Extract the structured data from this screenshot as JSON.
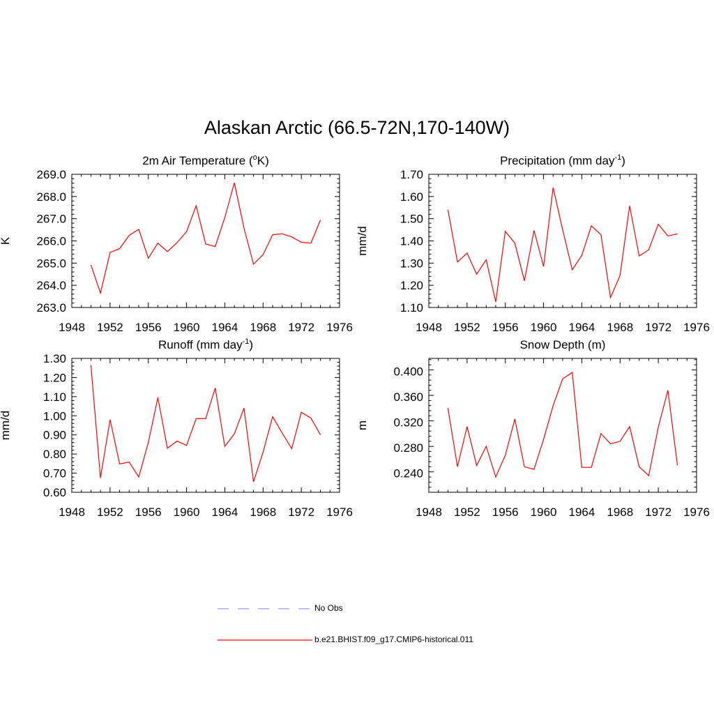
{
  "title": "Alaskan Arctic (66.5-72N,170-140W)",
  "x_ticks": [
    "1948",
    "1952",
    "1956",
    "1960",
    "1964",
    "1968",
    "1972",
    "1976"
  ],
  "colors": {
    "model": "#ff0000",
    "obs": "#9999ff",
    "axis": "#000000"
  },
  "chart_data": [
    {
      "type": "line",
      "title_main": "2m Air Temperature (",
      "title_sup": "o",
      "title_tail": "K)",
      "ylabel": "K",
      "xlim": [
        1948,
        1976
      ],
      "ylim": [
        263.0,
        269.0
      ],
      "yticks": [
        "263.0",
        "264.0",
        "265.0",
        "266.0",
        "267.0",
        "268.0",
        "269.0"
      ],
      "x": [
        1950,
        1951,
        1952,
        1953,
        1954,
        1955,
        1956,
        1957,
        1958,
        1959,
        1960,
        1961,
        1962,
        1963,
        1964,
        1965,
        1966,
        1967,
        1968,
        1969,
        1970,
        1971,
        1972,
        1973,
        1974
      ],
      "series": [
        {
          "name": "b.e21.BHIST.f09_g17.CMIP6-historical.011",
          "values": [
            264.92,
            263.65,
            265.48,
            265.65,
            266.25,
            266.52,
            265.22,
            265.9,
            265.52,
            265.92,
            266.42,
            267.58,
            265.86,
            265.75,
            267.05,
            268.62,
            266.58,
            264.95,
            265.38,
            266.28,
            266.32,
            266.18,
            265.94,
            265.9,
            266.94
          ]
        }
      ]
    },
    {
      "type": "line",
      "title_main": "Precipitation (mm day",
      "title_sup": "-1",
      "title_tail": ")",
      "ylabel": "mm/d",
      "xlim": [
        1948,
        1976
      ],
      "ylim": [
        1.1,
        1.7
      ],
      "yticks": [
        "1.10",
        "1.20",
        "1.30",
        "1.40",
        "1.50",
        "1.60",
        "1.70"
      ],
      "x": [
        1950,
        1951,
        1952,
        1953,
        1954,
        1955,
        1956,
        1957,
        1958,
        1959,
        1960,
        1961,
        1962,
        1963,
        1964,
        1965,
        1966,
        1967,
        1968,
        1969,
        1970,
        1971,
        1972,
        1973,
        1974
      ],
      "series": [
        {
          "name": "b.e21.BHIST.f09_g17.CMIP6-historical.011",
          "values": [
            1.54,
            1.305,
            1.345,
            1.25,
            1.315,
            1.125,
            1.443,
            1.39,
            1.22,
            1.447,
            1.285,
            1.64,
            1.45,
            1.27,
            1.335,
            1.468,
            1.428,
            1.145,
            1.245,
            1.558,
            1.332,
            1.36,
            1.475,
            1.422,
            1.432
          ]
        }
      ]
    },
    {
      "type": "line",
      "title_main": "Runoff (mm day",
      "title_sup": "-1",
      "title_tail": ")",
      "ylabel": "mm/d",
      "xlim": [
        1948,
        1976
      ],
      "ylim": [
        0.6,
        1.3
      ],
      "yticks": [
        "0.60",
        "0.70",
        "0.80",
        "0.90",
        "1.00",
        "1.10",
        "1.20",
        "1.30"
      ],
      "x": [
        1950,
        1951,
        1952,
        1953,
        1954,
        1955,
        1956,
        1957,
        1958,
        1959,
        1960,
        1961,
        1962,
        1963,
        1964,
        1965,
        1966,
        1967,
        1968,
        1969,
        1970,
        1971,
        1972,
        1973,
        1974
      ],
      "series": [
        {
          "name": "b.e21.BHIST.f09_g17.CMIP6-historical.011",
          "values": [
            1.265,
            0.675,
            0.98,
            0.748,
            0.758,
            0.68,
            0.86,
            1.095,
            0.83,
            0.868,
            0.845,
            0.985,
            0.985,
            1.145,
            0.84,
            0.905,
            1.04,
            0.655,
            0.81,
            0.995,
            0.91,
            0.828,
            1.018,
            0.988,
            0.9
          ]
        }
      ]
    },
    {
      "type": "line",
      "title_main": "Snow Depth (m)",
      "title_sup": "",
      "title_tail": "",
      "ylabel": "m",
      "xlim": [
        1948,
        1976
      ],
      "ylim": [
        0.21,
        0.42
      ],
      "yticks": [
        "0.240",
        "0.280",
        "0.320",
        "0.360",
        "0.400"
      ],
      "ytick_values": [
        0.24,
        0.28,
        0.32,
        0.36,
        0.4
      ],
      "x": [
        1950,
        1951,
        1952,
        1953,
        1954,
        1955,
        1956,
        1957,
        1958,
        1959,
        1960,
        1961,
        1962,
        1963,
        1964,
        1965,
        1966,
        1967,
        1968,
        1969,
        1970,
        1971,
        1972,
        1973,
        1974
      ],
      "series": [
        {
          "name": "b.e21.BHIST.f09_g17.CMIP6-historical.011",
          "values": [
            0.342,
            0.25,
            0.313,
            0.252,
            0.282,
            0.234,
            0.268,
            0.325,
            0.25,
            0.246,
            0.293,
            0.346,
            0.388,
            0.398,
            0.249,
            0.249,
            0.302,
            0.286,
            0.29,
            0.313,
            0.25,
            0.236,
            0.312,
            0.37,
            0.252
          ]
        }
      ]
    }
  ],
  "legend": [
    {
      "label": "No Obs",
      "style": "dashed"
    },
    {
      "label": "b.e21.BHIST.f09_g17.CMIP6-historical.011",
      "style": "solid"
    }
  ]
}
